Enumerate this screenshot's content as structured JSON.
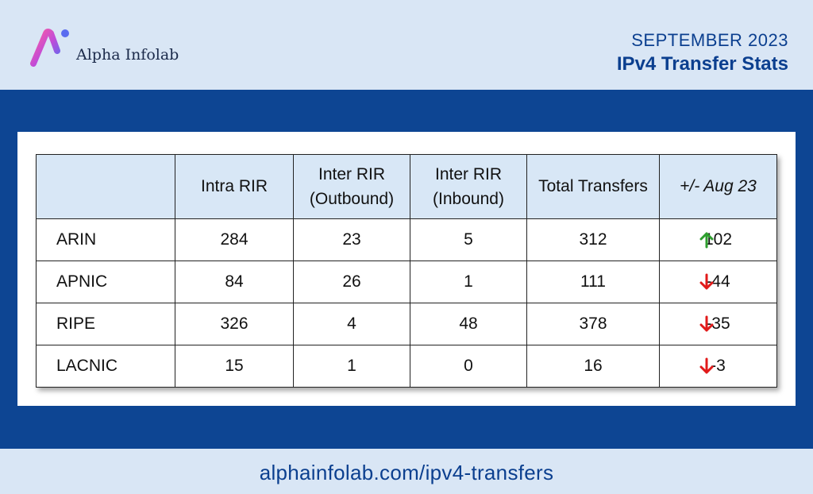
{
  "header": {
    "brand_name": "Alpha Infolab",
    "month": "SEPTEMBER 2023",
    "title": "IPv4 Transfer Stats"
  },
  "table": {
    "columns": [
      "",
      "Intra RIR",
      "Inter RIR (Outbound)",
      "Inter RIR (Inbound)",
      "Total Transfers",
      "+/- Aug 23"
    ],
    "rows": [
      {
        "rir": "ARIN",
        "intra": "284",
        "outbound": "23",
        "inbound": "5",
        "total": "312",
        "change": "102",
        "direction": "up"
      },
      {
        "rir": "APNIC",
        "intra": "84",
        "outbound": "26",
        "inbound": "1",
        "total": "111",
        "change": "-44",
        "direction": "down"
      },
      {
        "rir": "RIPE",
        "intra": "326",
        "outbound": "4",
        "inbound": "48",
        "total": "378",
        "change": "-35",
        "direction": "down"
      },
      {
        "rir": "LACNIC",
        "intra": "15",
        "outbound": "1",
        "inbound": "0",
        "total": "16",
        "change": "-3",
        "direction": "down"
      }
    ]
  },
  "icons": {
    "up": "arrow-up-icon",
    "down": "arrow-down-icon"
  },
  "colors": {
    "navy": "#0d4593",
    "up_arrow": "#2e9e2e",
    "down_arrow": "#e11a1a"
  },
  "footer": {
    "url": "alphainfolab.com/ipv4-transfers"
  }
}
